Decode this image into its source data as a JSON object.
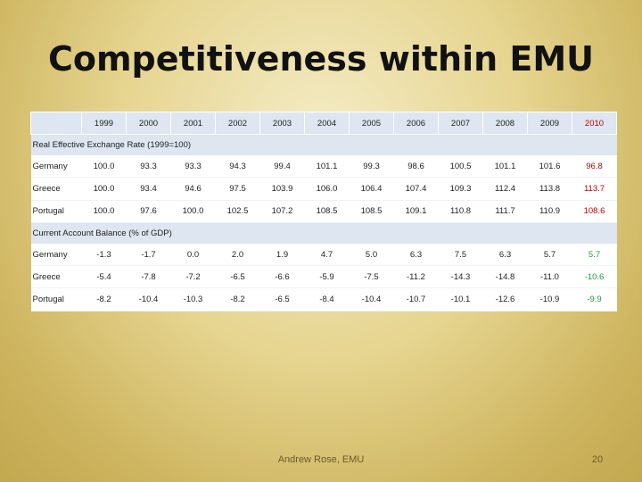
{
  "title": "Competitiveness within EMU",
  "years": [
    "1999",
    "2000",
    "2001",
    "2002",
    "2003",
    "2004",
    "2005",
    "2006",
    "2007",
    "2008",
    "2009",
    "2010"
  ],
  "sections": [
    {
      "label": "Real Effective Exchange Rate (1999=100)",
      "rows": [
        {
          "country": "Germany",
          "values": [
            "100.0",
            "93.3",
            "93.3",
            "94.3",
            "99.4",
            "101.1",
            "99.3",
            "98.6",
            "100.5",
            "101.1",
            "101.6",
            "96.8"
          ]
        },
        {
          "country": "Greece",
          "values": [
            "100.0",
            "93.4",
            "94.6",
            "97.5",
            "103.9",
            "106.0",
            "106.4",
            "107.4",
            "109.3",
            "112.4",
            "113.8",
            "113.7"
          ]
        },
        {
          "country": "Portugal",
          "values": [
            "100.0",
            "97.6",
            "100.0",
            "102.5",
            "107.2",
            "108.5",
            "108.5",
            "109.1",
            "110.8",
            "111.7",
            "110.9",
            "108.6"
          ]
        }
      ]
    },
    {
      "label": "Current Account Balance (% of GDP)",
      "rows": [
        {
          "country": "Germany",
          "values": [
            "-1.3",
            "-1.7",
            "0.0",
            "2.0",
            "1.9",
            "4.7",
            "5.0",
            "6.3",
            "7.5",
            "6.3",
            "5.7",
            "5.7"
          ]
        },
        {
          "country": "Greece",
          "values": [
            "-5.4",
            "-7.8",
            "-7.2",
            "-6.5",
            "-6.6",
            "-5.9",
            "-7.5",
            "-11.2",
            "-14.3",
            "-14.8",
            "-11.0",
            "-10.6"
          ]
        },
        {
          "country": "Portugal",
          "values": [
            "-8.2",
            "-10.4",
            "-10.3",
            "-8.2",
            "-6.5",
            "-8.4",
            "-10.4",
            "-10.7",
            "-10.1",
            "-12.6",
            "-10.9",
            "-9.9"
          ]
        }
      ]
    }
  ],
  "colors": {
    "last_year_section1": "#c00000",
    "last_year_section2": "#1e9a3b"
  },
  "footer": "Andrew Rose, EMU",
  "page_number": "20"
}
